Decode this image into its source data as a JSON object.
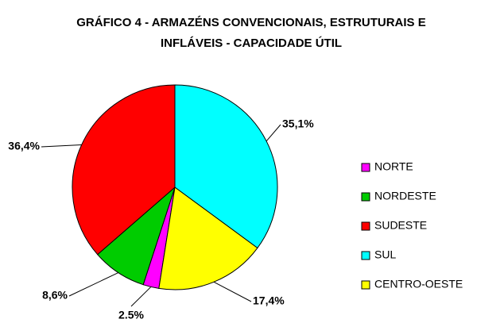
{
  "chart_data": {
    "type": "pie",
    "title": [
      "GRÁFICO 4 - ARMAZÉNS CONVENCIONAIS, ESTRUTURAIS E",
      "INFLÁVEIS - CAPACIDADE ÚTIL"
    ],
    "categories": [
      "NORTE",
      "NORDESTE",
      "SUDESTE",
      "SUL",
      "CENTRO-OESTE"
    ],
    "values": [
      2.5,
      8.6,
      36.4,
      35.1,
      17.4
    ],
    "value_labels": [
      "2.5%",
      "8,6%",
      "36,4%",
      "35,1%",
      "17,4%"
    ],
    "colors": [
      "#ff00ff",
      "#00cc00",
      "#ff0000",
      "#00ffff",
      "#ffff00"
    ],
    "start_angle": 189,
    "legend": "right"
  }
}
